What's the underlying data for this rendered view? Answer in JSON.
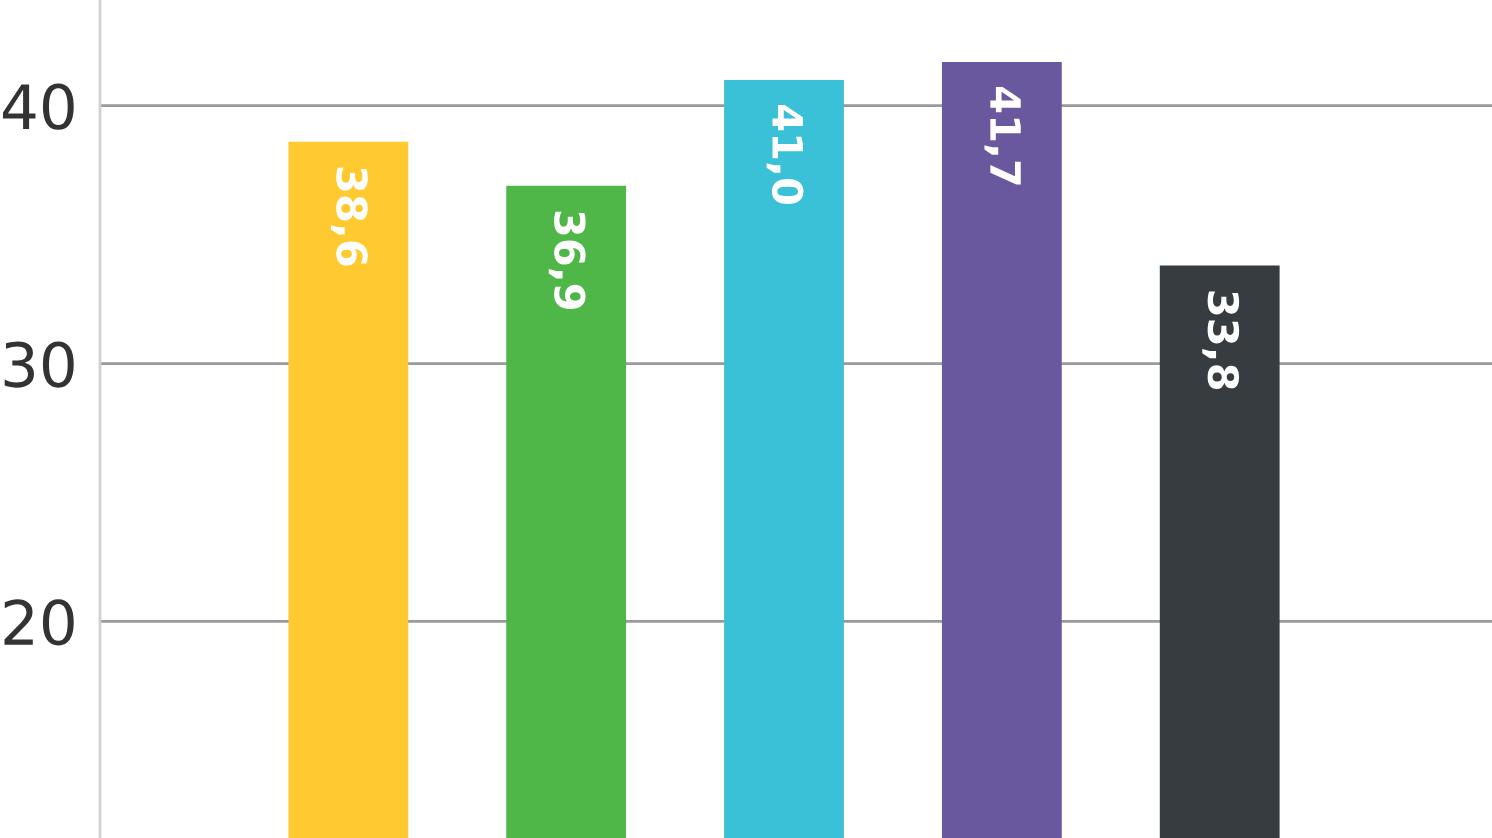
{
  "chart_data": {
    "type": "bar",
    "categories": [
      null,
      null,
      null,
      null,
      null
    ],
    "values": [
      38.6,
      36.9,
      41.0,
      41.7,
      33.8
    ],
    "colors": [
      "#ffca2f",
      "#4fb748",
      "#3ac1d7",
      "#6a589f",
      "#363c40"
    ],
    "value_labels": [
      "38,6",
      "36,9",
      "41,0",
      "41,7",
      "33,8"
    ],
    "ylim": [
      11.6,
      44.1
    ],
    "yticks": [
      20,
      30,
      40
    ],
    "grid": "y",
    "tick_labels": "y"
  }
}
